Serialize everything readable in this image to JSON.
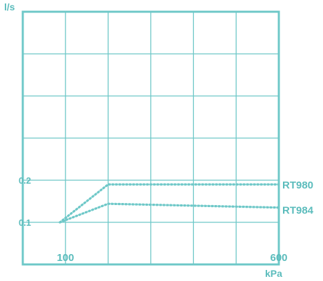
{
  "colors": {
    "axis": "#6ec8c8",
    "grid": "#6ec8c8",
    "series": "#6ec8c8",
    "label": "#5bbcbc"
  },
  "chart_data": {
    "type": "line",
    "xlabel": "kPa",
    "ylabel": "l/s",
    "x_ticks": [
      {
        "value": 100,
        "label": "100"
      },
      {
        "value": 600,
        "label": "600"
      }
    ],
    "y_ticks": [
      {
        "value": 0.1,
        "label": "0.1"
      },
      {
        "value": 0.2,
        "label": "0.2"
      }
    ],
    "xlim": [
      100,
      600
    ],
    "ylim": [
      0.1,
      0.2
    ],
    "grid": true,
    "line_style": "dotted",
    "series": [
      {
        "name": "RT980",
        "x": [
          100,
          200,
          600
        ],
        "y": [
          0.1,
          0.19,
          0.19
        ]
      },
      {
        "name": "RT984",
        "x": [
          100,
          200,
          600
        ],
        "y": [
          0.1,
          0.144,
          0.135
        ]
      }
    ]
  }
}
